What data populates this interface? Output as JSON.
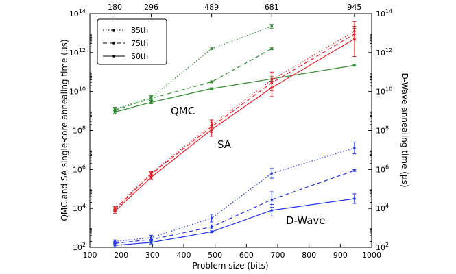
{
  "chart_data": {
    "type": "line",
    "xlabel": "Problem size (bits)",
    "ylabel_left": "QMC and SA single-core annealing time (μs)",
    "ylabel_right": "D-Wave annealing time (μs)",
    "xlim": [
      100,
      1000
    ],
    "ylog_exp_range": [
      2,
      14
    ],
    "x_ticks": [
      100,
      200,
      300,
      400,
      500,
      600,
      700,
      800,
      900,
      1000
    ],
    "top_ticks": [
      180,
      296,
      489,
      681,
      945
    ],
    "y_tick_exps": [
      2,
      4,
      6,
      8,
      10,
      12,
      14
    ],
    "y_tick_base": "10",
    "y_unit_symbol": "μ",
    "legend": [
      {
        "label": "85th",
        "dash": "dotted"
      },
      {
        "label": "75th",
        "dash": "dashed"
      },
      {
        "label": "50th",
        "dash": "solid"
      }
    ],
    "annotations": {
      "qmc": "QMC",
      "sa": "SA",
      "dwave": "D-Wave"
    },
    "colors": {
      "qmc": "#2e8b2e",
      "sa": "#e8202a",
      "dwave": "#2233ee"
    },
    "series": [
      {
        "name": "QMC 85th",
        "group": "qmc",
        "dash": "dotted",
        "x": [
          180,
          296,
          489,
          681
        ],
        "y_exp": [
          9.1,
          9.7,
          12.2,
          13.35
        ],
        "err": [
          0.1,
          0.1,
          0.05,
          0.1
        ]
      },
      {
        "name": "QMC 75th",
        "group": "qmc",
        "dash": "dashed",
        "x": [
          180,
          296,
          489,
          681
        ],
        "y_exp": [
          9.05,
          9.65,
          10.5,
          12.2
        ],
        "err": [
          0.1,
          0.1,
          0.05,
          0.05
        ]
      },
      {
        "name": "QMC 50th",
        "group": "qmc",
        "dash": "solid",
        "x": [
          180,
          296,
          489,
          681,
          945
        ],
        "y_exp": [
          8.95,
          9.45,
          10.15,
          10.65,
          11.35
        ],
        "err": [
          0.08,
          0.08,
          0.05,
          0.12,
          0.05
        ]
      },
      {
        "name": "SA 85th",
        "group": "sa",
        "dash": "dotted",
        "x": [
          180,
          296,
          489,
          681,
          945
        ],
        "y_exp": [
          4.0,
          5.8,
          8.3,
          10.6,
          13.1
        ],
        "err": [
          0.1,
          0.1,
          0.25,
          0.4,
          0.25
        ]
      },
      {
        "name": "SA 75th",
        "group": "sa",
        "dash": "dashed",
        "x": [
          180,
          296,
          489,
          681,
          945
        ],
        "y_exp": [
          3.95,
          5.75,
          8.2,
          10.45,
          12.95
        ],
        "err": [
          0.1,
          0.1,
          0.3,
          0.4,
          0.3
        ]
      },
      {
        "name": "SA 50th",
        "group": "sa",
        "dash": "solid",
        "x": [
          180,
          296,
          489,
          681,
          945
        ],
        "y_exp": [
          3.85,
          5.6,
          8.05,
          10.2,
          12.7
        ],
        "err": [
          0.1,
          0.12,
          0.35,
          0.45,
          0.9
        ]
      },
      {
        "name": "D-Wave 85th",
        "group": "dwave",
        "dash": "dotted",
        "x": [
          180,
          296,
          489,
          681,
          945
        ],
        "y_exp": [
          2.3,
          2.5,
          3.5,
          5.8,
          7.1
        ],
        "err": [
          0.08,
          0.12,
          0.2,
          0.25,
          0.3
        ]
      },
      {
        "name": "D-Wave 75th",
        "group": "dwave",
        "dash": "dashed",
        "x": [
          180,
          296,
          489,
          681,
          945
        ],
        "y_exp": [
          2.2,
          2.4,
          3.05,
          4.45,
          5.95
        ],
        "err": [
          0.08,
          0.08,
          0.1,
          0.4,
          0.05
        ]
      },
      {
        "name": "D-Wave 50th",
        "group": "dwave",
        "dash": "solid",
        "x": [
          180,
          296,
          489,
          681,
          945
        ],
        "y_exp": [
          2.1,
          2.25,
          2.8,
          3.9,
          4.5
        ],
        "err": [
          0.08,
          0.08,
          0.05,
          0.3,
          0.25
        ]
      }
    ]
  }
}
